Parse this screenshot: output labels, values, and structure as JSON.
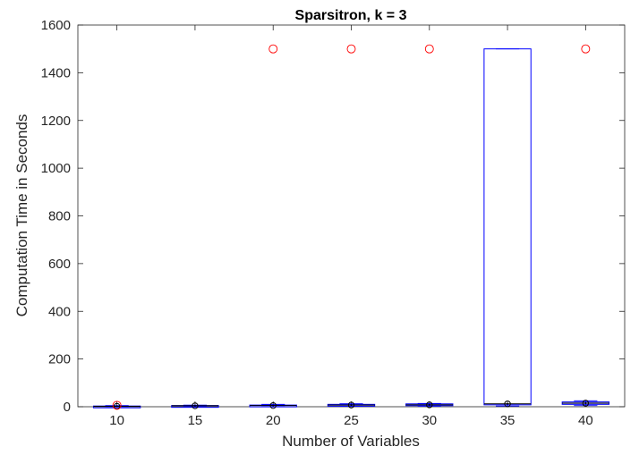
{
  "chart_data": {
    "type": "boxplot",
    "title": "Sparsitron, k = 3",
    "xlabel": "Number of Variables",
    "ylabel": "Computation Time in Seconds",
    "categories": [
      "10",
      "15",
      "20",
      "25",
      "30",
      "35",
      "40"
    ],
    "ylim": [
      0,
      1600
    ],
    "yticks": [
      0,
      200,
      400,
      600,
      800,
      1000,
      1200,
      1400,
      1600
    ],
    "grid": false,
    "box_color": "#0000ff",
    "median_color": "#000000",
    "outlier_color": "#ff0000",
    "boxes": [
      {
        "category": "10",
        "q1": 1,
        "median": 2,
        "q3": 3,
        "whisker_low": 0,
        "whisker_high": 5,
        "outliers": [
          6
        ]
      },
      {
        "category": "15",
        "q1": 2,
        "median": 4,
        "q3": 5,
        "whisker_low": 1,
        "whisker_high": 7,
        "outliers": []
      },
      {
        "category": "20",
        "q1": 3,
        "median": 5,
        "q3": 7,
        "whisker_low": 1,
        "whisker_high": 10,
        "outliers": [
          1500
        ]
      },
      {
        "category": "25",
        "q1": 4,
        "median": 7,
        "q3": 10,
        "whisker_low": 2,
        "whisker_high": 13,
        "outliers": [
          1500
        ]
      },
      {
        "category": "30",
        "q1": 5,
        "median": 8,
        "q3": 12,
        "whisker_low": 2,
        "whisker_high": 14,
        "outliers": [
          1500
        ]
      },
      {
        "category": "35",
        "q1": 8,
        "median": 12,
        "q3": 1500,
        "whisker_low": 3,
        "whisker_high": 1500,
        "outliers": []
      },
      {
        "category": "40",
        "q1": 10,
        "median": 15,
        "q3": 20,
        "whisker_low": 5,
        "whisker_high": 25,
        "outliers": [
          1500
        ]
      }
    ]
  }
}
